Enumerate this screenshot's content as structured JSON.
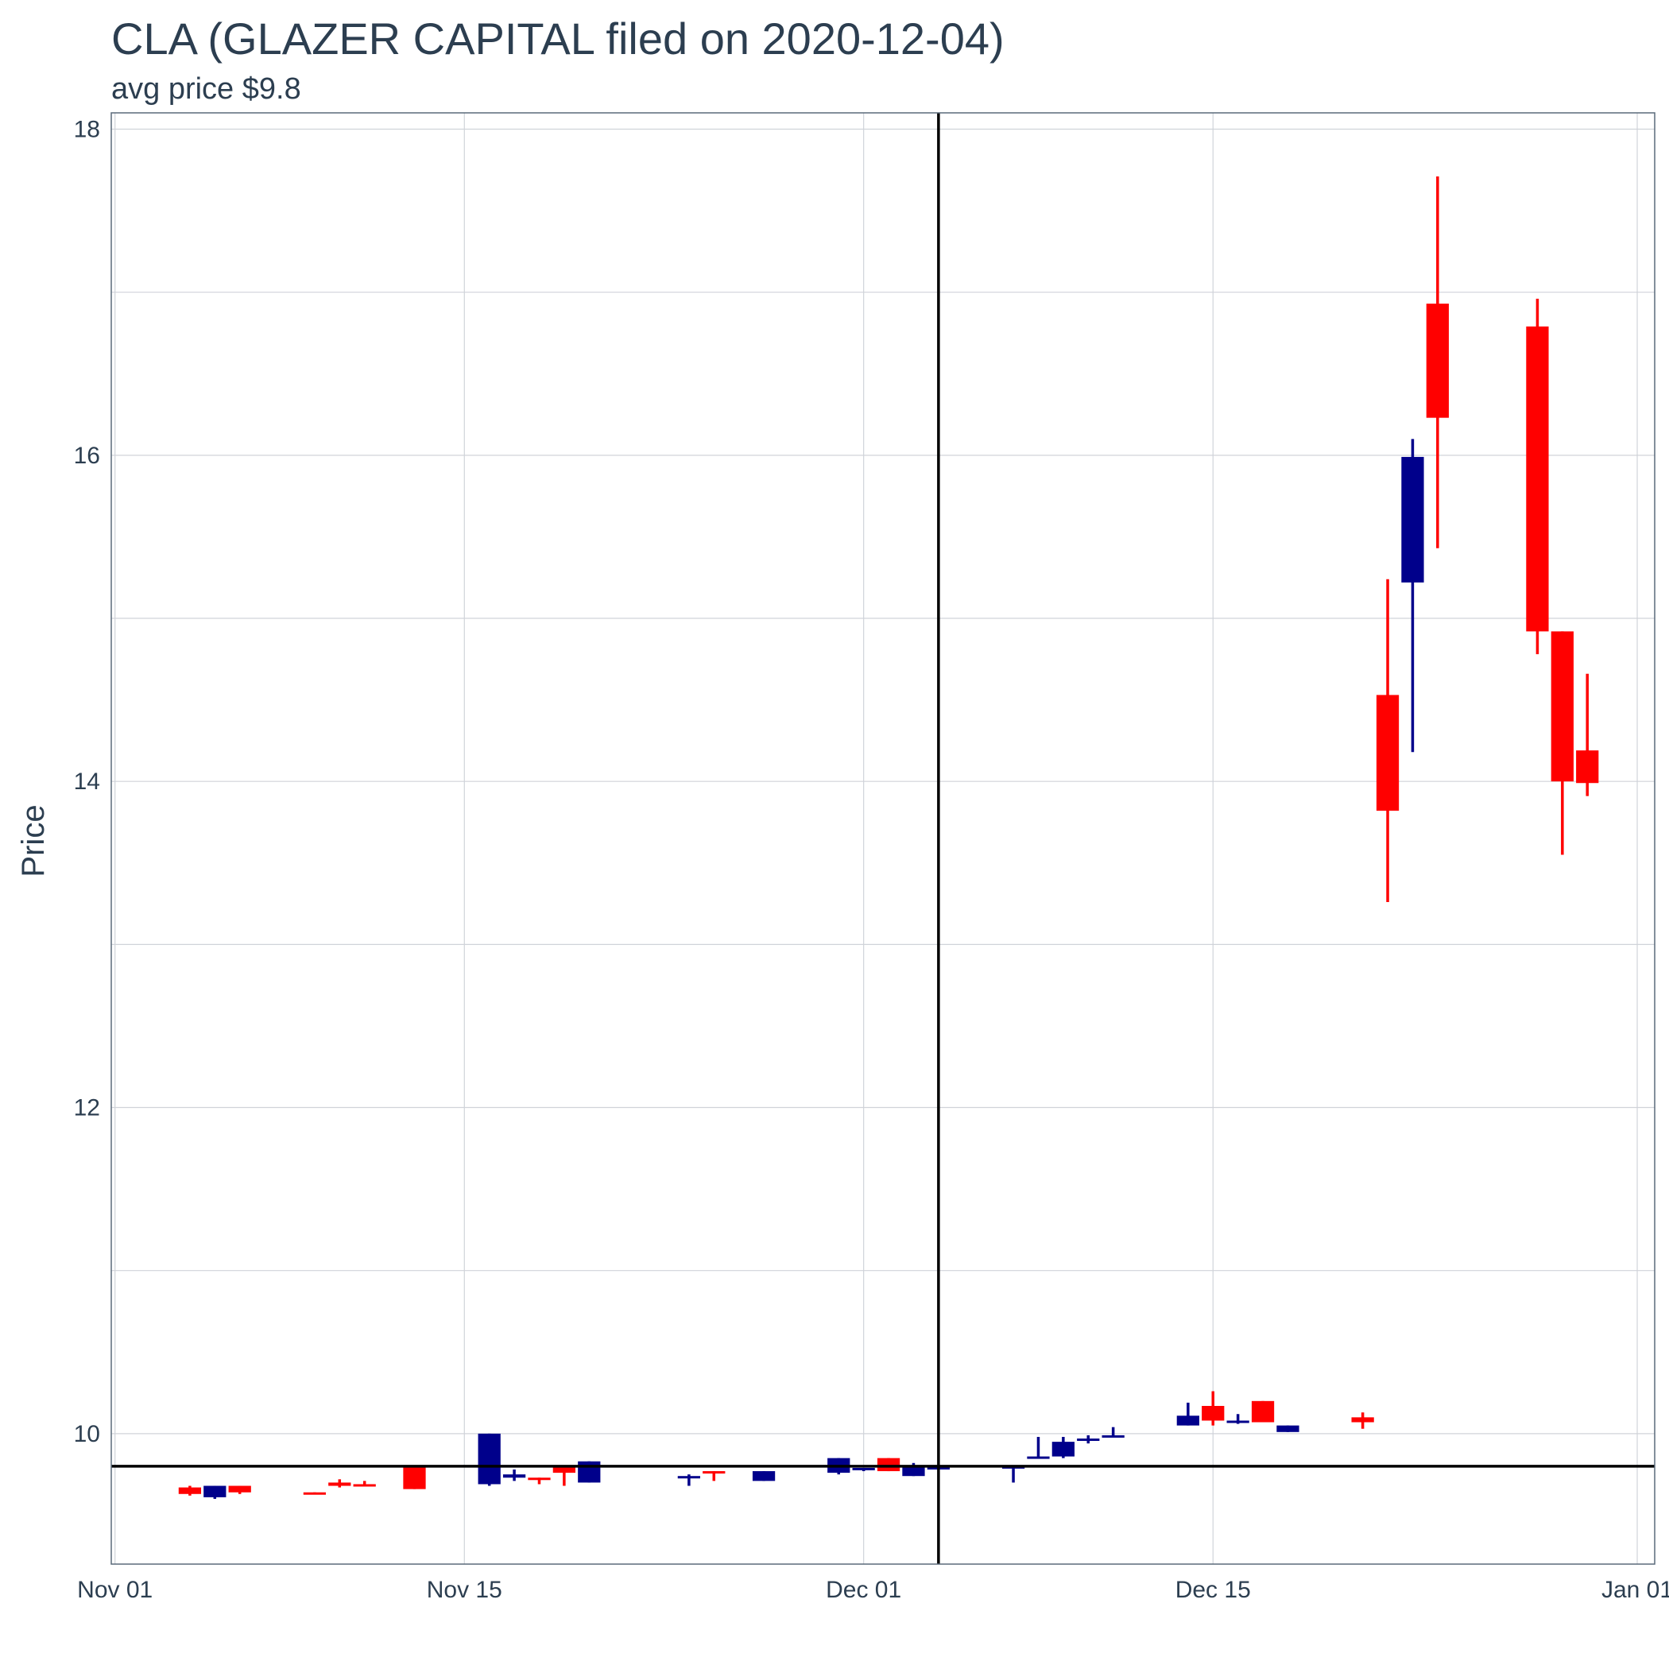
{
  "chart_data": {
    "type": "candlestick",
    "title": "CLA (GLAZER CAPITAL filed on 2020-12-04)",
    "subtitle": "avg price $9.8",
    "xlabel": "",
    "ylabel": "Price",
    "x_ticks": [
      {
        "date": "2020-11-01",
        "label": "Nov 01"
      },
      {
        "date": "2020-11-15",
        "label": "Nov 15"
      },
      {
        "date": "2020-12-01",
        "label": "Dec 01"
      },
      {
        "date": "2020-12-15",
        "label": "Dec 15"
      },
      {
        "date": "2021-01-01",
        "label": "Jan 01"
      }
    ],
    "y_ticks": [
      10,
      12,
      14,
      16,
      18
    ],
    "xlim": [
      "2020-11-01",
      "2021-01-01"
    ],
    "ylim": [
      9.2,
      18.1
    ],
    "grid": true,
    "reference_lines": {
      "vertical_date": "2020-12-04",
      "horizontal_price": 9.8
    },
    "colors": {
      "up": "#00008b",
      "down": "#ff0000",
      "reference": "#000000",
      "grid": "#d0d3d9",
      "panel_border": "#5a6a7a",
      "text": "#2c3e50"
    },
    "candles": [
      {
        "date": "2020-11-04",
        "open": 9.67,
        "high": 9.68,
        "low": 9.62,
        "close": 9.63
      },
      {
        "date": "2020-11-05",
        "open": 9.61,
        "high": 9.68,
        "low": 9.6,
        "close": 9.68
      },
      {
        "date": "2020-11-06",
        "open": 9.68,
        "high": 9.68,
        "low": 9.63,
        "close": 9.64
      },
      {
        "date": "2020-11-09",
        "open": 9.64,
        "high": 9.64,
        "low": 9.63,
        "close": 9.63
      },
      {
        "date": "2020-11-10",
        "open": 9.7,
        "high": 9.72,
        "low": 9.67,
        "close": 9.68
      },
      {
        "date": "2020-11-11",
        "open": 9.69,
        "high": 9.71,
        "low": 9.68,
        "close": 9.68
      },
      {
        "date": "2020-11-13",
        "open": 9.8,
        "high": 9.8,
        "low": 9.66,
        "close": 9.66
      },
      {
        "date": "2020-11-16",
        "open": 9.69,
        "high": 10.0,
        "low": 9.68,
        "close": 10.0
      },
      {
        "date": "2020-11-17",
        "open": 9.73,
        "high": 9.78,
        "low": 9.71,
        "close": 9.75
      },
      {
        "date": "2020-11-18",
        "open": 9.73,
        "high": 9.73,
        "low": 9.69,
        "close": 9.72
      },
      {
        "date": "2020-11-19",
        "open": 9.8,
        "high": 9.8,
        "low": 9.68,
        "close": 9.76
      },
      {
        "date": "2020-11-20",
        "open": 9.7,
        "high": 9.83,
        "low": 9.7,
        "close": 9.83
      },
      {
        "date": "2020-11-24",
        "open": 9.73,
        "high": 9.75,
        "low": 9.68,
        "close": 9.74
      },
      {
        "date": "2020-11-25",
        "open": 9.77,
        "high": 9.77,
        "low": 9.71,
        "close": 9.76
      },
      {
        "date": "2020-11-27",
        "open": 9.71,
        "high": 9.77,
        "low": 9.71,
        "close": 9.77
      },
      {
        "date": "2020-11-30",
        "open": 9.76,
        "high": 9.85,
        "low": 9.75,
        "close": 9.85
      },
      {
        "date": "2020-12-01",
        "open": 9.78,
        "high": 9.79,
        "low": 9.77,
        "close": 9.79
      },
      {
        "date": "2020-12-02",
        "open": 9.85,
        "high": 9.85,
        "low": 9.77,
        "close": 9.77
      },
      {
        "date": "2020-12-03",
        "open": 9.74,
        "high": 9.82,
        "low": 9.74,
        "close": 9.8
      },
      {
        "date": "2020-12-04",
        "open": 9.78,
        "high": 9.8,
        "low": 9.78,
        "close": 9.8
      },
      {
        "date": "2020-12-07",
        "open": 9.8,
        "high": 9.8,
        "low": 9.7,
        "close": 9.8
      },
      {
        "date": "2020-12-08",
        "open": 9.85,
        "high": 9.98,
        "low": 9.85,
        "close": 9.86
      },
      {
        "date": "2020-12-09",
        "open": 9.86,
        "high": 9.98,
        "low": 9.85,
        "close": 9.95
      },
      {
        "date": "2020-12-10",
        "open": 9.97,
        "high": 9.99,
        "low": 9.94,
        "close": 9.97
      },
      {
        "date": "2020-12-11",
        "open": 9.99,
        "high": 10.04,
        "low": 9.98,
        "close": 9.99
      },
      {
        "date": "2020-12-14",
        "open": 10.05,
        "high": 10.19,
        "low": 10.05,
        "close": 10.11
      },
      {
        "date": "2020-12-15",
        "open": 10.17,
        "high": 10.26,
        "low": 10.05,
        "close": 10.08
      },
      {
        "date": "2020-12-16",
        "open": 10.07,
        "high": 10.12,
        "low": 10.06,
        "close": 10.08
      },
      {
        "date": "2020-12-17",
        "open": 10.2,
        "high": 10.2,
        "low": 10.07,
        "close": 10.07
      },
      {
        "date": "2020-12-18",
        "open": 10.01,
        "high": 10.05,
        "low": 10.01,
        "close": 10.05
      },
      {
        "date": "2020-12-21",
        "open": 10.1,
        "high": 10.13,
        "low": 10.03,
        "close": 10.07
      },
      {
        "date": "2020-12-22",
        "open": 14.53,
        "high": 15.24,
        "low": 13.26,
        "close": 13.82
      },
      {
        "date": "2020-12-23",
        "open": 15.22,
        "high": 16.1,
        "low": 14.18,
        "close": 15.99
      },
      {
        "date": "2020-12-24",
        "open": 16.93,
        "high": 17.71,
        "low": 15.43,
        "close": 16.23
      },
      {
        "date": "2020-12-28",
        "open": 16.79,
        "high": 16.96,
        "low": 14.78,
        "close": 14.92
      },
      {
        "date": "2020-12-29",
        "open": 14.92,
        "high": 14.92,
        "low": 13.55,
        "close": 14.0
      },
      {
        "date": "2020-12-30",
        "open": 14.19,
        "high": 14.66,
        "low": 13.91,
        "close": 13.99
      }
    ]
  }
}
